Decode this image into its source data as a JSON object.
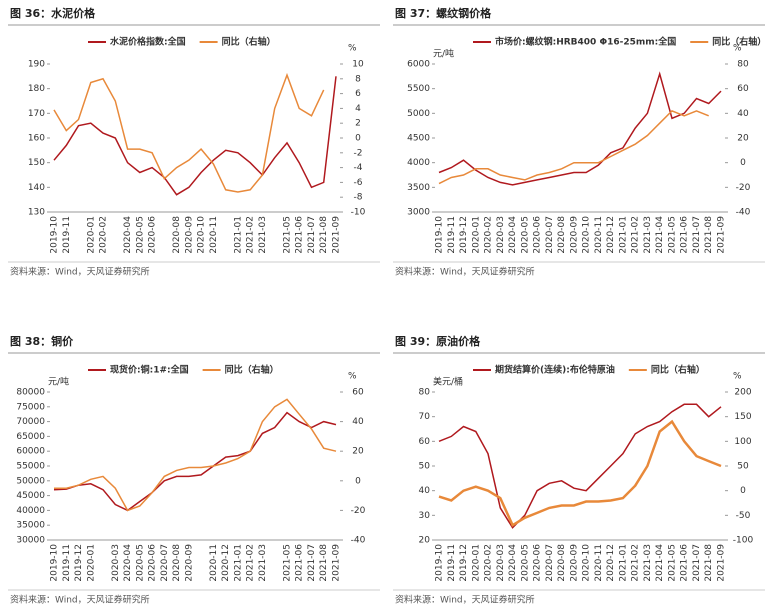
{
  "chart_data": [
    {
      "type": "line",
      "title": "图 36：水泥价格",
      "source": "资料来源：Wind，天风证券研究所",
      "y2_unit": "%",
      "categories": [
        "2019-10",
        "2019-11",
        null,
        "2020-01",
        "2020-02",
        null,
        "2020-04",
        "2020-05",
        "2020-06",
        null,
        "2020-08",
        "2020-09",
        "2020-10",
        "2020-11",
        null,
        "2021-01",
        "2021-02",
        "2021-03",
        null,
        "2021-05",
        "2021-06",
        "2021-07",
        "2021-08",
        "2021-09"
      ],
      "series": [
        {
          "name": "水泥价格指数:全国",
          "color": "#b0191e",
          "axis": "y",
          "values": [
            151,
            157,
            165,
            166,
            162,
            160,
            150,
            146,
            148,
            144,
            137,
            140,
            146,
            151,
            155,
            154,
            150,
            145,
            152,
            158,
            150,
            140,
            142,
            185
          ]
        },
        {
          "name": "同比（右轴）",
          "color": "#e8893a",
          "axis": "y2",
          "values": [
            3.8,
            1,
            2.5,
            7.5,
            8,
            5,
            -1.5,
            -1.5,
            -2,
            -5.5,
            -4,
            -3,
            -1.5,
            -3.5,
            -7,
            -7.3,
            -7,
            -5,
            4,
            8.5,
            4,
            3,
            6.5,
            null
          ]
        }
      ],
      "ylim": [
        130,
        190
      ],
      "yticks": [
        130,
        140,
        150,
        160,
        170,
        180,
        190
      ],
      "y2lim": [
        -10,
        10
      ],
      "y2ticks": [
        -10,
        -8,
        -6,
        -4,
        -2,
        0,
        2,
        4,
        6,
        8,
        10
      ]
    },
    {
      "type": "line",
      "title": "图 37：螺纹钢价格",
      "source": "资料来源：Wind，天风证券研究所",
      "y_unit": "元/吨",
      "y2_unit": "%",
      "categories": [
        "2019-10",
        "2019-11",
        "2019-12",
        "2020-01",
        "2020-02",
        "2020-03",
        "2020-04",
        "2020-05",
        "2020-06",
        "2020-07",
        "2020-08",
        "2020-09",
        "2020-10",
        "2020-11",
        "2020-12",
        "2021-01",
        "2021-02",
        "2021-03",
        "2021-04",
        "2021-05",
        "2021-06",
        "2021-07",
        "2021-08",
        "2021-09"
      ],
      "series": [
        {
          "name": "市场价:螺纹钢:HRB400 Φ16-25mm:全国",
          "color": "#b0191e",
          "axis": "y",
          "values": [
            3800,
            3900,
            4050,
            3850,
            3700,
            3600,
            3550,
            3600,
            3650,
            3700,
            3750,
            3800,
            3800,
            3950,
            4200,
            4300,
            4700,
            5000,
            5800,
            4900,
            5000,
            5300,
            5200,
            5450
          ]
        },
        {
          "name": "同比（右轴）",
          "color": "#e8893a",
          "axis": "y2",
          "values": [
            -17,
            -12,
            -10,
            -5,
            -5,
            -10,
            -12,
            -14,
            -10,
            -8,
            -5,
            0,
            0,
            0,
            5,
            10,
            15,
            22,
            32,
            42,
            38,
            42,
            38,
            null
          ]
        }
      ],
      "ylim": [
        3000,
        6000
      ],
      "yticks": [
        3000,
        3500,
        4000,
        4500,
        5000,
        5500,
        6000
      ],
      "y2lim": [
        -40,
        80
      ],
      "y2ticks": [
        -40,
        -20,
        0,
        20,
        40,
        60,
        80
      ]
    },
    {
      "type": "line",
      "title": "图 38：铜价",
      "source": "资料来源：Wind，天风证券研究所",
      "y_unit": "元/吨",
      "y2_unit": "%",
      "categories": [
        "2019-10",
        "2019-11",
        "2019-12",
        "2020-01",
        null,
        "2020-03",
        "2020-04",
        "2020-05",
        "2020-06",
        "2020-07",
        "2020-08",
        "2020-09",
        null,
        "2020-11",
        "2020-12",
        "2021-01",
        "2021-02",
        "2021-03",
        null,
        "2021-05",
        "2021-06",
        "2021-07",
        "2021-08",
        "2021-09"
      ],
      "series": [
        {
          "name": "现货价:铜:1#:全国",
          "color": "#b0191e",
          "axis": "y",
          "values": [
            47000,
            47200,
            48500,
            49000,
            47000,
            42000,
            40000,
            43000,
            46000,
            50000,
            51500,
            51500,
            52000,
            55000,
            58000,
            58500,
            60000,
            66000,
            68000,
            73000,
            70000,
            68000,
            70000,
            69000
          ]
        },
        {
          "name": "同比（右轴）",
          "color": "#e8893a",
          "axis": "y2",
          "values": [
            -5,
            -5,
            -3,
            1,
            3,
            -5,
            -20,
            -17,
            -8,
            3,
            7,
            9,
            9,
            10,
            12,
            15,
            20,
            40,
            50,
            55,
            45,
            35,
            22,
            20
          ]
        }
      ],
      "ylim": [
        30000,
        80000
      ],
      "yticks": [
        30000,
        35000,
        40000,
        45000,
        50000,
        55000,
        60000,
        65000,
        70000,
        75000,
        80000
      ],
      "y2lim": [
        -40,
        60
      ],
      "y2ticks": [
        -40,
        -20,
        0,
        20,
        40,
        60
      ]
    },
    {
      "type": "line",
      "title": "图 39：原油价格",
      "source": "资料来源：Wind，天风证券研究所",
      "y_unit": "美元/桶",
      "y2_unit": "%",
      "categories": [
        "2019-10",
        "2019-11",
        "2019-12",
        "2020-01",
        "2020-02",
        "2020-03",
        "2020-04",
        "2020-05",
        "2020-06",
        "2020-07",
        "2020-08",
        "2020-09",
        "2020-10",
        "2020-11",
        "2020-12",
        "2021-01",
        "2021-02",
        "2021-03",
        "2021-04",
        "2021-05",
        "2021-06",
        "2021-07",
        "2021-08",
        "2021-09"
      ],
      "series": [
        {
          "name": "期货结算价(连续):布伦特原油",
          "color": "#b0191e",
          "axis": "y",
          "values": [
            60,
            62,
            66,
            64,
            55,
            33,
            25,
            30,
            40,
            43,
            44,
            41,
            40,
            45,
            50,
            55,
            63,
            66,
            68,
            72,
            75,
            75,
            70,
            74
          ]
        },
        {
          "name": "同比（右轴）",
          "color": "#e8893a",
          "axis": "y2",
          "values": [
            -12,
            -20,
            0,
            8,
            0,
            -15,
            -70,
            -55,
            -45,
            -35,
            -30,
            -30,
            -22,
            -22,
            -20,
            -15,
            10,
            50,
            120,
            140,
            100,
            70,
            60,
            50
          ]
        }
      ],
      "ylim": [
        20,
        80
      ],
      "yticks": [
        20,
        30,
        40,
        50,
        60,
        70,
        80
      ],
      "y2lim": [
        -100,
        200
      ],
      "y2ticks": [
        -100,
        -50,
        0,
        50,
        100,
        150,
        200
      ]
    }
  ]
}
